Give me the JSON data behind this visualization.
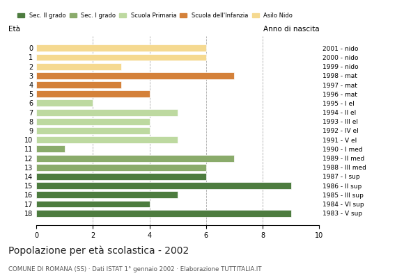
{
  "ages": [
    18,
    17,
    16,
    15,
    14,
    13,
    12,
    11,
    10,
    9,
    8,
    7,
    6,
    5,
    4,
    3,
    2,
    1,
    0
  ],
  "values": [
    9,
    4,
    5,
    9,
    6,
    6,
    7,
    1,
    5,
    4,
    4,
    5,
    2,
    4,
    3,
    7,
    3,
    6,
    6
  ],
  "anno_nascita": [
    "1983 - V sup",
    "1984 - VI sup",
    "1985 - III sup",
    "1986 - II sup",
    "1987 - I sup",
    "1988 - III med",
    "1989 - II med",
    "1990 - I med",
    "1991 - V el",
    "1992 - IV el",
    "1993 - III el",
    "1994 - II el",
    "1995 - I el",
    "1996 - mat",
    "1997 - mat",
    "1998 - mat",
    "1999 - nido",
    "2000 - nido",
    "2001 - nido"
  ],
  "bar_colors": [
    "#4d7c3f",
    "#4d7c3f",
    "#4d7c3f",
    "#4d7c3f",
    "#4d7c3f",
    "#8aab6b",
    "#8aab6b",
    "#8aab6b",
    "#bdd9a0",
    "#bdd9a0",
    "#bdd9a0",
    "#bdd9a0",
    "#bdd9a0",
    "#d4813a",
    "#d4813a",
    "#d4813a",
    "#f5d990",
    "#f5d990",
    "#f5d990"
  ],
  "legend_labels": [
    "Sec. II grado",
    "Sec. I grado",
    "Scuola Primaria",
    "Scuola dell'Infanzia",
    "Asilo Nido"
  ],
  "legend_colors": [
    "#4d7c3f",
    "#8aab6b",
    "#bdd9a0",
    "#d4813a",
    "#f5d990"
  ],
  "title": "Popolazione per età scolastica - 2002",
  "subtitle": "COMUNE DI ROMANA (SS) · Dati ISTAT 1° gennaio 2002 · Elaborazione TUTTITALIA.IT",
  "xlabel_left": "Età",
  "xlabel_right": "Anno di nascita",
  "xlim": [
    0,
    10
  ],
  "xticks": [
    0,
    2,
    4,
    6,
    8,
    10
  ],
  "dashed_xticks": [
    2,
    4,
    6,
    8
  ],
  "background_color": "#ffffff",
  "grid_color": "#aaaaaa"
}
